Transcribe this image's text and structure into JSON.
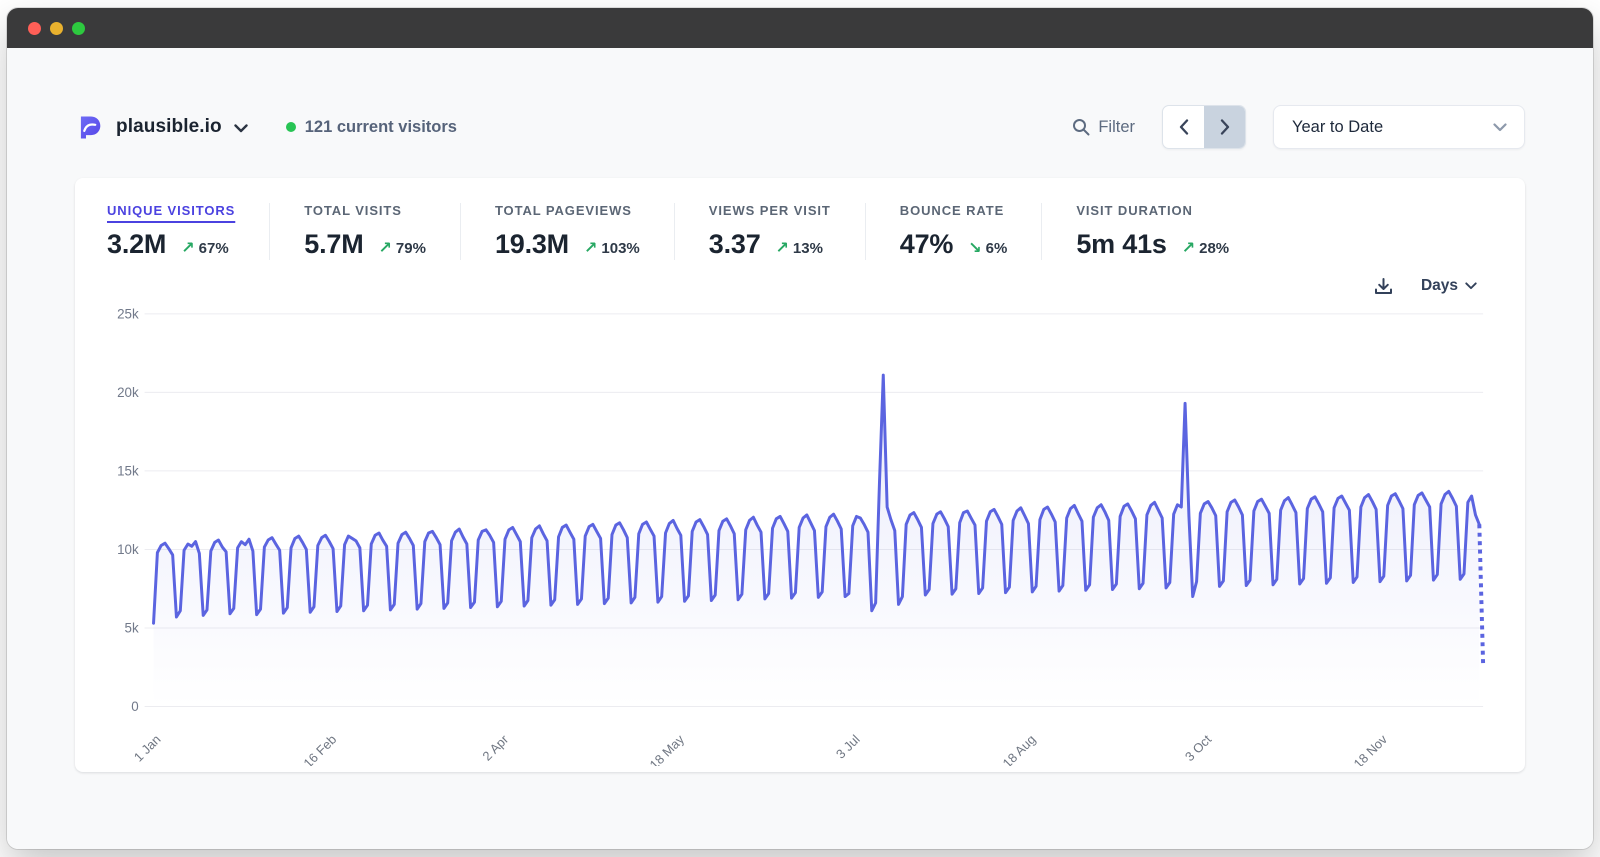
{
  "colors": {
    "accent": "#4b42e0",
    "chart_line": "#5b64e0",
    "live_dot_green": "#27c454",
    "trend_green": "#27a863",
    "traffic_red": "#ff5f57",
    "traffic_yellow": "#e9b12e",
    "traffic_green": "#2dc93f"
  },
  "header": {
    "site_name": "plausible.io",
    "current_visitors": "121 current visitors",
    "filter_label": "Filter",
    "range_label": "Year to Date"
  },
  "stats": {
    "items": [
      {
        "label": "Unique visitors",
        "value": "3.2M",
        "arrow": "↗",
        "change": "67%",
        "active": true
      },
      {
        "label": "Total visits",
        "value": "5.7M",
        "arrow": "↗",
        "change": "79%",
        "active": false
      },
      {
        "label": "Total pageviews",
        "value": "19.3M",
        "arrow": "↗",
        "change": "103%",
        "active": false
      },
      {
        "label": "Views per visit",
        "value": "3.37",
        "arrow": "↗",
        "change": "13%",
        "active": false
      },
      {
        "label": "Bounce rate",
        "value": "47%",
        "arrow": "↘",
        "change": "6%",
        "active": false
      },
      {
        "label": "Visit duration",
        "value": "5m 41s",
        "arrow": "↗",
        "change": "28%",
        "active": false
      }
    ]
  },
  "chart_controls": {
    "interval_label": "Days"
  },
  "chart_data": {
    "type": "line",
    "title": "Unique visitors by day, Year to Date",
    "interval": "day",
    "ylim": [
      0,
      25000
    ],
    "y_ticks": [
      0,
      5000,
      10000,
      15000,
      20000,
      25000
    ],
    "y_tick_labels": [
      "0",
      "5k",
      "10k",
      "15k",
      "20k",
      "25k"
    ],
    "x_tick_labels": [
      "1 Jan",
      "16 Feb",
      "2 Apr",
      "18 May",
      "3 Jul",
      "18 Aug",
      "3 Oct",
      "18 Nov"
    ],
    "x_tick_positions": [
      0,
      46,
      91,
      137,
      183,
      229,
      275,
      321
    ],
    "grid": true,
    "legend": "none",
    "last_segment_style": "dotted",
    "series": [
      {
        "name": "Unique visitors",
        "values": [
          5300,
          9800,
          10250,
          10400,
          10050,
          9650,
          5700,
          6100,
          9950,
          10350,
          10200,
          10500,
          9750,
          5800,
          6150,
          9900,
          10450,
          10600,
          10150,
          9850,
          5900,
          6250,
          10100,
          10500,
          10300,
          10650,
          9900,
          5850,
          6200,
          10150,
          10600,
          10750,
          10350,
          9950,
          5950,
          6300,
          10100,
          10700,
          10850,
          10450,
          10000,
          6000,
          6350,
          10250,
          10750,
          10900,
          10500,
          10050,
          6050,
          6400,
          10300,
          10850,
          10700,
          10550,
          10100,
          6100,
          6450,
          10350,
          10900,
          11050,
          10600,
          10200,
          6150,
          6500,
          10400,
          10950,
          11100,
          10700,
          10250,
          6200,
          6550,
          10500,
          11050,
          11150,
          10750,
          10300,
          6250,
          6600,
          10550,
          11100,
          11300,
          10800,
          10350,
          6300,
          6650,
          10600,
          11150,
          11250,
          10900,
          10450,
          6350,
          6700,
          10650,
          11250,
          11400,
          10950,
          10500,
          6400,
          6750,
          10750,
          11300,
          11500,
          11000,
          10550,
          6450,
          6800,
          10800,
          11400,
          11550,
          11100,
          10650,
          6500,
          6850,
          10850,
          11450,
          11600,
          11150,
          10700,
          6550,
          6900,
          10950,
          11550,
          11700,
          11250,
          10750,
          6600,
          6950,
          11000,
          11600,
          11750,
          11300,
          10850,
          6650,
          7000,
          11050,
          11650,
          11850,
          11350,
          10900,
          6700,
          7050,
          11150,
          11750,
          11900,
          11450,
          10950,
          6750,
          7100,
          11200,
          11800,
          11950,
          11500,
          11000,
          6800,
          7150,
          11250,
          11850,
          12050,
          11550,
          11100,
          6850,
          7200,
          11350,
          11950,
          12100,
          11650,
          11150,
          6900,
          7250,
          11400,
          12000,
          12200,
          11700,
          11200,
          6950,
          7300,
          11450,
          12050,
          12250,
          11800,
          11300,
          7000,
          7200,
          11500,
          12100,
          12000,
          11600,
          11100,
          6100,
          6600,
          14300,
          21100,
          12700,
          11900,
          11200,
          6500,
          7000,
          11600,
          12200,
          12350,
          11900,
          11400,
          7100,
          7450,
          11650,
          12250,
          12400,
          11950,
          11450,
          7150,
          7500,
          11700,
          12350,
          12450,
          12000,
          11550,
          7200,
          7550,
          11800,
          12400,
          12550,
          12100,
          11600,
          7250,
          7600,
          11850,
          12450,
          12650,
          12150,
          11650,
          7300,
          7650,
          11900,
          12550,
          12700,
          12250,
          11750,
          7350,
          7700,
          12000,
          12600,
          12800,
          12300,
          11800,
          7400,
          7750,
          12050,
          12650,
          12850,
          12400,
          11850,
          7450,
          7800,
          12100,
          12750,
          12900,
          12450,
          11950,
          7500,
          7850,
          12200,
          12800,
          13000,
          12500,
          12000,
          7550,
          7900,
          12250,
          12850,
          12700,
          19300,
          12100,
          7000,
          7950,
          12300,
          12900,
          13050,
          12650,
          12150,
          7650,
          8000,
          12400,
          13000,
          13150,
          12700,
          12200,
          7700,
          8050,
          12450,
          13050,
          13200,
          12750,
          12300,
          7750,
          8100,
          12500,
          13100,
          13300,
          12850,
          12350,
          7800,
          8150,
          12600,
          13200,
          13350,
          12900,
          12400,
          7850,
          8200,
          12650,
          13250,
          13400,
          12950,
          12500,
          7900,
          8250,
          12700,
          13300,
          13500,
          13050,
          12550,
          7950,
          8300,
          12800,
          13400,
          13550,
          13100,
          12600,
          8000,
          8350,
          12850,
          13450,
          13600,
          13150,
          12700,
          8050,
          8400,
          12900,
          13500,
          13700,
          13250,
          12750,
          8100,
          8450,
          13000,
          13400,
          12200,
          11600,
          2700
        ]
      }
    ]
  }
}
